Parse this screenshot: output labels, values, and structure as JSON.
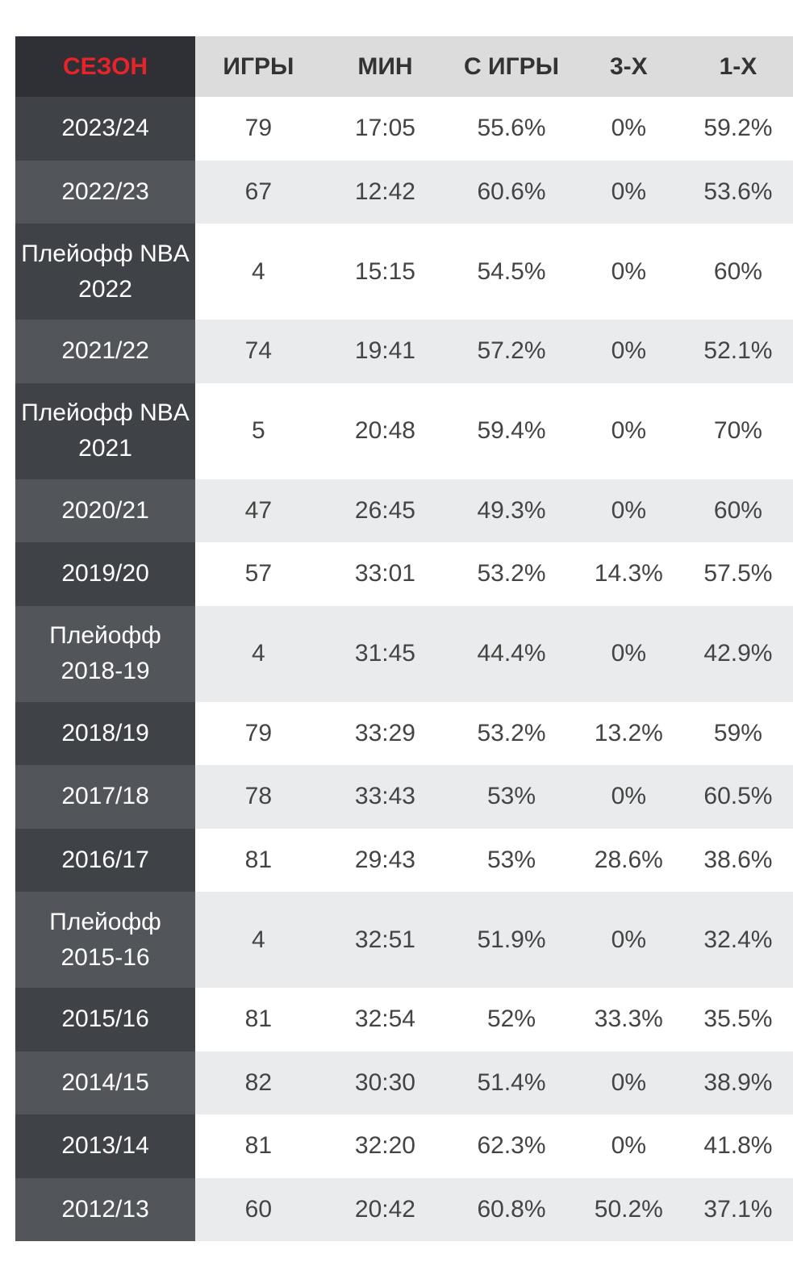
{
  "table": {
    "columns": [
      "СЕЗОН",
      "ИГРЫ",
      "МИН",
      "С ИГРЫ",
      "3-Х",
      "1-Х"
    ],
    "rows": [
      {
        "season": "2023/24",
        "games": "79",
        "minutes": "17:05",
        "fg": "55.6%",
        "three": "0%",
        "ft": "59.2%"
      },
      {
        "season": "2022/23",
        "games": "67",
        "minutes": "12:42",
        "fg": "60.6%",
        "three": "0%",
        "ft": "53.6%"
      },
      {
        "season": "Плейофф NBA 2022",
        "games": "4",
        "minutes": "15:15",
        "fg": "54.5%",
        "three": "0%",
        "ft": "60%"
      },
      {
        "season": "2021/22",
        "games": "74",
        "minutes": "19:41",
        "fg": "57.2%",
        "three": "0%",
        "ft": "52.1%"
      },
      {
        "season": "Плейофф NBA 2021",
        "games": "5",
        "minutes": "20:48",
        "fg": "59.4%",
        "three": "0%",
        "ft": "70%"
      },
      {
        "season": "2020/21",
        "games": "47",
        "minutes": "26:45",
        "fg": "49.3%",
        "three": "0%",
        "ft": "60%"
      },
      {
        "season": "2019/20",
        "games": "57",
        "minutes": "33:01",
        "fg": "53.2%",
        "three": "14.3%",
        "ft": "57.5%"
      },
      {
        "season": "Плейофф 2018-19",
        "games": "4",
        "minutes": "31:45",
        "fg": "44.4%",
        "three": "0%",
        "ft": "42.9%"
      },
      {
        "season": "2018/19",
        "games": "79",
        "minutes": "33:29",
        "fg": "53.2%",
        "three": "13.2%",
        "ft": "59%"
      },
      {
        "season": "2017/18",
        "games": "78",
        "minutes": "33:43",
        "fg": "53%",
        "three": "0%",
        "ft": "60.5%"
      },
      {
        "season": "2016/17",
        "games": "81",
        "minutes": "29:43",
        "fg": "53%",
        "three": "28.6%",
        "ft": "38.6%"
      },
      {
        "season": "Плейофф 2015-16",
        "games": "4",
        "minutes": "32:51",
        "fg": "51.9%",
        "three": "0%",
        "ft": "32.4%"
      },
      {
        "season": "2015/16",
        "games": "81",
        "minutes": "32:54",
        "fg": "52%",
        "three": "33.3%",
        "ft": "35.5%"
      },
      {
        "season": "2014/15",
        "games": "82",
        "minutes": "30:30",
        "fg": "51.4%",
        "three": "0%",
        "ft": "38.9%"
      },
      {
        "season": "2013/14",
        "games": "81",
        "minutes": "32:20",
        "fg": "62.3%",
        "three": "0%",
        "ft": "41.8%"
      },
      {
        "season": "2012/13",
        "games": "60",
        "minutes": "20:42",
        "fg": "60.8%",
        "three": "50.2%",
        "ft": "37.1%"
      }
    ]
  },
  "colors": {
    "season_header_text": "#e8232a",
    "header_bg": "#dcdcdc",
    "season_col_dark": "#3f4247",
    "season_col_light": "#52565b",
    "row_alt_bg": "#eaebed"
  }
}
